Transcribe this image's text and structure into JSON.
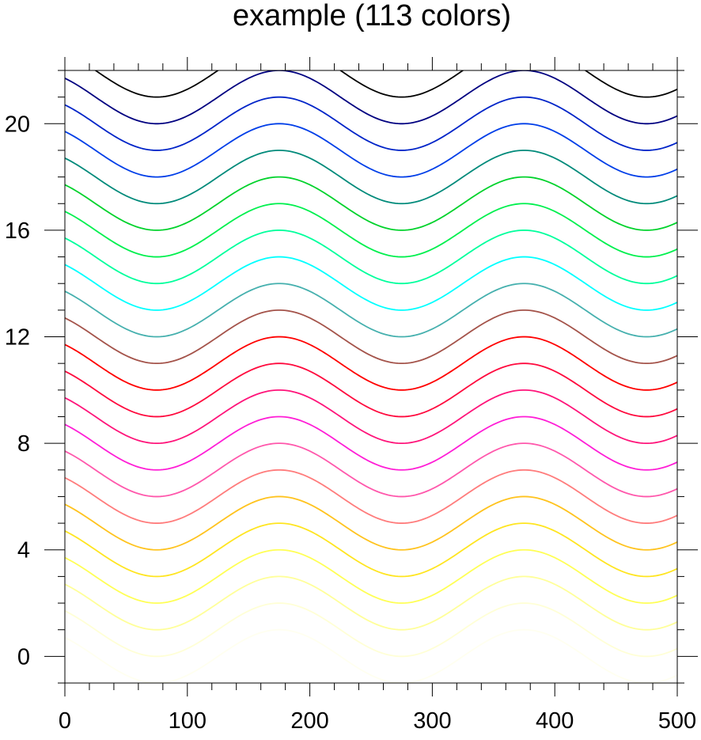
{
  "chart_data": {
    "type": "line",
    "title": "example (113 colors)",
    "xlabel": "",
    "ylabel": "",
    "xlim": [
      0,
      500
    ],
    "ylim": [
      -1,
      22
    ],
    "xticks": [
      "0",
      "100",
      "200",
      "300",
      "400",
      "500"
    ],
    "yticks": [
      "0",
      "4",
      "8",
      "12",
      "16",
      "20"
    ],
    "grid": false,
    "curve": {
      "formula": "y = offset + sin(2*pi*(x + 75)/200)",
      "x_step": 2
    },
    "series": [
      {
        "offset": 0,
        "color": "#fffff0"
      },
      {
        "offset": 1,
        "color": "#ffffd6"
      },
      {
        "offset": 2,
        "color": "#ffff99"
      },
      {
        "offset": 3,
        "color": "#ffff55"
      },
      {
        "offset": 4,
        "color": "#ffe520"
      },
      {
        "offset": 5,
        "color": "#ffc31e"
      },
      {
        "offset": 6,
        "color": "#ff7c7c"
      },
      {
        "offset": 7,
        "color": "#ff58ac"
      },
      {
        "offset": 8,
        "color": "#ff1dd6"
      },
      {
        "offset": 9,
        "color": "#ff147a"
      },
      {
        "offset": 10,
        "color": "#ff0a3e"
      },
      {
        "offset": 11,
        "color": "#ff0000"
      },
      {
        "offset": 12,
        "color": "#a4534a"
      },
      {
        "offset": 13,
        "color": "#45b0ae"
      },
      {
        "offset": 14,
        "color": "#00ffff"
      },
      {
        "offset": 15,
        "color": "#00ff9c"
      },
      {
        "offset": 16,
        "color": "#00f04e"
      },
      {
        "offset": 17,
        "color": "#00d22b"
      },
      {
        "offset": 18,
        "color": "#008a7a"
      },
      {
        "offset": 19,
        "color": "#003ee8"
      },
      {
        "offset": 20,
        "color": "#0024c8"
      },
      {
        "offset": 21,
        "color": "#000080"
      },
      {
        "offset": 22,
        "color": "#000000"
      }
    ]
  }
}
